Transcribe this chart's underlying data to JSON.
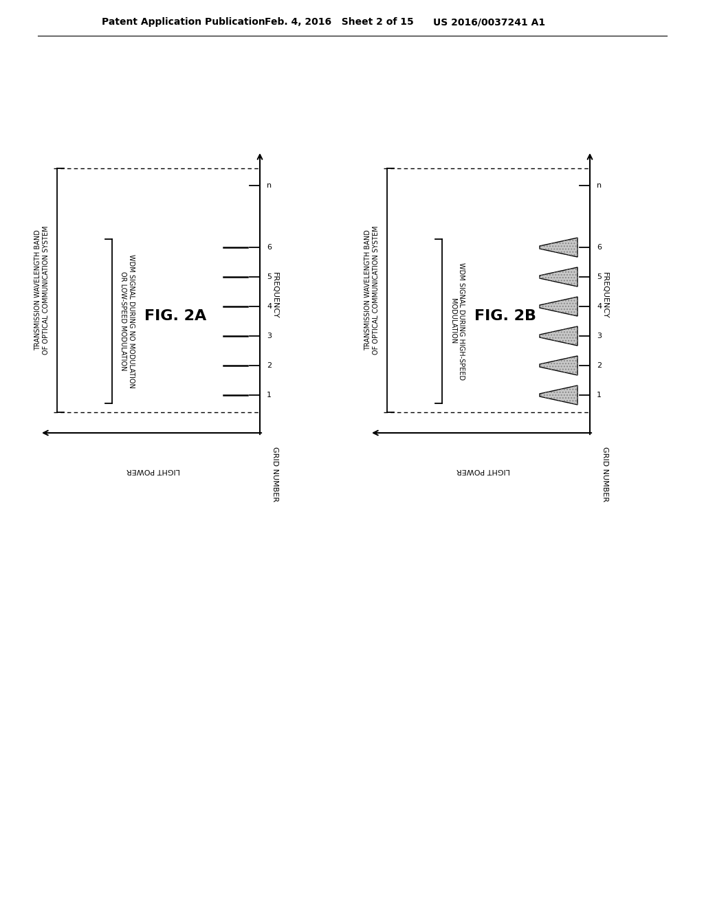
{
  "header_left": "Patent Application Publication",
  "header_mid": "Feb. 4, 2016   Sheet 2 of 15",
  "header_right": "US 2016/0037241 A1",
  "fig2a_label": "FIG. 2A",
  "fig2b_label": "FIG. 2B",
  "label_transmission_band": "TRANSMISSION WAVELENGTH BAND\nOF OPTICAL COMMUNICATION SYSTEM",
  "label_wdm_2a": "WDM SIGNAL DURING NO MODULATION\nOR LOW-SPEED MODULATION",
  "label_wdm_2b": "WDM SIGNAL DURING HIGH-SPEED\nMODULATION",
  "label_frequency": "FREQUENCY",
  "label_grid_number": "GRID NUMBER",
  "label_light_power": "LIGHT POWER",
  "grid_labels": [
    "1",
    "2",
    "3",
    "4",
    "5",
    "6",
    "n"
  ],
  "background_color": "#ffffff",
  "line_color": "#000000"
}
